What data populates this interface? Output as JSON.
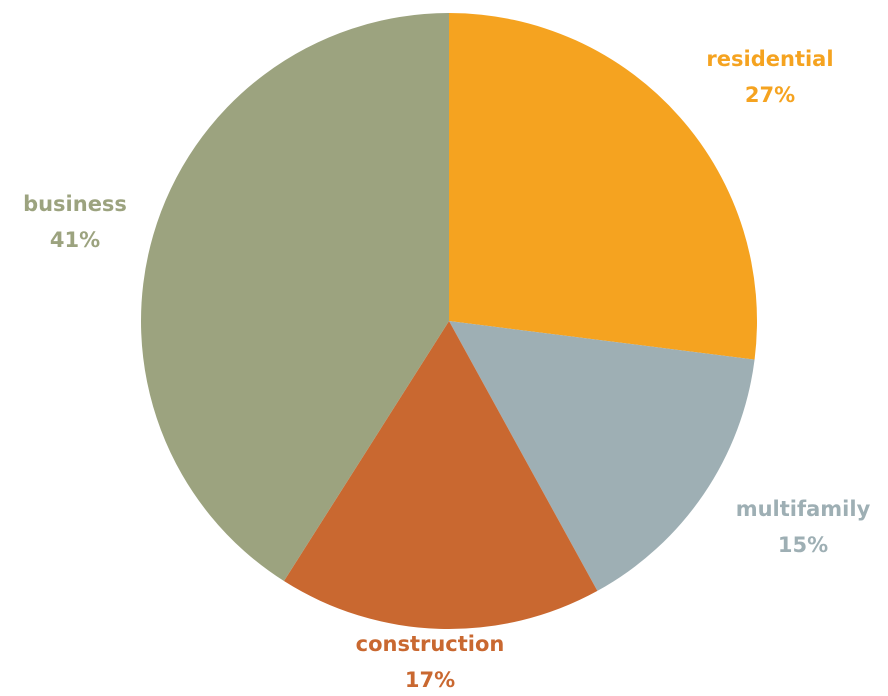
{
  "chart_data": {
    "type": "pie",
    "categories": [
      "residential",
      "multifamily",
      "construction",
      "business"
    ],
    "values": [
      27,
      15,
      17,
      41
    ],
    "value_labels": [
      "27%",
      "15%",
      "17%",
      "41%"
    ],
    "colors": [
      "#f5a320",
      "#9eafb4",
      "#c96830",
      "#9ca37f"
    ]
  }
}
